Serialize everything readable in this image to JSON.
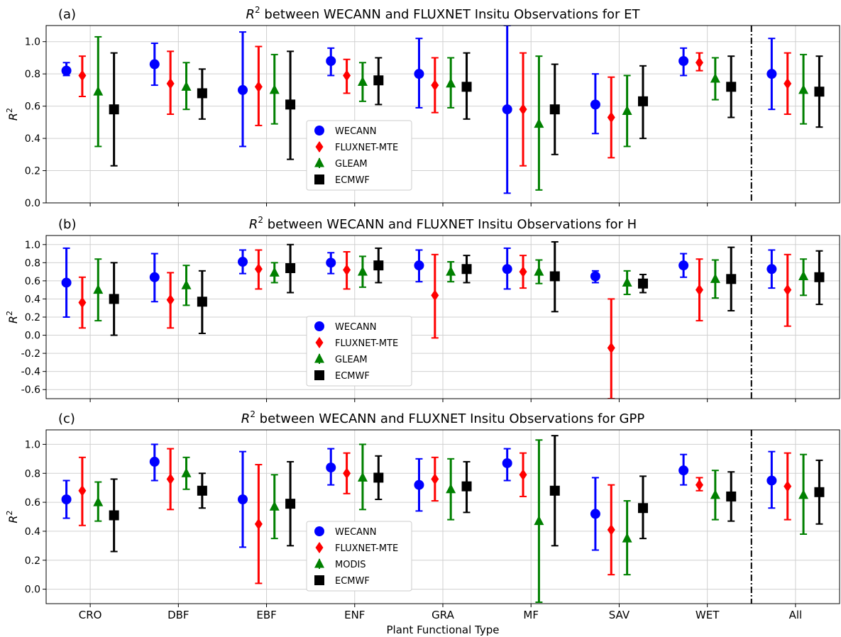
{
  "xlabel": "Plant Functional Type",
  "categories": [
    "CRO",
    "DBF",
    "EBF",
    "ENF",
    "GRA",
    "MF",
    "SAV",
    "WET",
    "All"
  ],
  "chart_data": [
    {
      "type": "errorbar",
      "panel_label": "(a)",
      "title_pre": "R",
      "title_sup": "2",
      "title_post": " between WECANN and FLUXNET Insitu Observations for ET",
      "ylabel": "R",
      "ylabel_sup": "2",
      "ylim": [
        0.0,
        1.1
      ],
      "yticks": [
        0.0,
        0.2,
        0.4,
        0.6,
        0.8,
        1.0
      ],
      "ytick_labels": [
        "0.0",
        "0.2",
        "0.4",
        "0.6",
        "0.8",
        "1.0"
      ],
      "grid": true,
      "legend_position": "lower-center",
      "separator_after_category": "WET",
      "series": [
        {
          "name": "WECANN",
          "color": "#0000ff",
          "marker": "circle",
          "mean": [
            0.82,
            0.86,
            0.7,
            0.88,
            0.8,
            0.58,
            0.61,
            0.88,
            0.8
          ],
          "lower": [
            0.79,
            0.73,
            0.35,
            0.79,
            0.59,
            0.06,
            0.43,
            0.79,
            0.58
          ],
          "upper": [
            0.87,
            0.99,
            1.06,
            0.96,
            1.02,
            1.1,
            0.8,
            0.96,
            1.02
          ]
        },
        {
          "name": "FLUXNET-MTE",
          "color": "#ff0000",
          "marker": "diamond",
          "mean": [
            0.79,
            0.74,
            0.72,
            0.79,
            0.73,
            0.58,
            0.53,
            0.87,
            0.74
          ],
          "lower": [
            0.66,
            0.55,
            0.48,
            0.68,
            0.56,
            0.23,
            0.28,
            0.82,
            0.55
          ],
          "upper": [
            0.91,
            0.94,
            0.97,
            0.89,
            0.9,
            0.93,
            0.78,
            0.93,
            0.93
          ]
        },
        {
          "name": "GLEAM",
          "color": "#008000",
          "marker": "triangle",
          "mean": [
            0.69,
            0.72,
            0.7,
            0.75,
            0.74,
            0.49,
            0.57,
            0.77,
            0.7
          ],
          "lower": [
            0.35,
            0.58,
            0.49,
            0.63,
            0.59,
            0.08,
            0.35,
            0.64,
            0.49
          ],
          "upper": [
            1.03,
            0.87,
            0.92,
            0.87,
            0.9,
            0.91,
            0.79,
            0.9,
            0.92
          ]
        },
        {
          "name": "ECMWF",
          "color": "#000000",
          "marker": "square",
          "mean": [
            0.58,
            0.68,
            0.61,
            0.76,
            0.72,
            0.58,
            0.63,
            0.72,
            0.69
          ],
          "lower": [
            0.23,
            0.52,
            0.27,
            0.61,
            0.52,
            0.3,
            0.4,
            0.53,
            0.47
          ],
          "upper": [
            0.93,
            0.83,
            0.94,
            0.9,
            0.93,
            0.86,
            0.85,
            0.91,
            0.91
          ]
        }
      ]
    },
    {
      "type": "errorbar",
      "panel_label": "(b)",
      "title_pre": "R",
      "title_sup": "2",
      "title_post": " between WECANN and FLUXNET Insitu Observations for H",
      "ylabel": "R",
      "ylabel_sup": "2",
      "ylim": [
        -0.7,
        1.1
      ],
      "yticks": [
        -0.6,
        -0.4,
        -0.2,
        0.0,
        0.2,
        0.4,
        0.6,
        0.8,
        1.0
      ],
      "ytick_labels": [
        "-0.6",
        "-0.4",
        "-0.2",
        "0.0",
        "0.2",
        "0.4",
        "0.6",
        "0.8",
        "1.0"
      ],
      "grid": true,
      "legend_position": "lower-center",
      "separator_after_category": "WET",
      "series": [
        {
          "name": "WECANN",
          "color": "#0000ff",
          "marker": "circle",
          "mean": [
            0.58,
            0.64,
            0.81,
            0.8,
            0.77,
            0.73,
            0.65,
            0.77,
            0.73
          ],
          "lower": [
            0.2,
            0.37,
            0.68,
            0.68,
            0.59,
            0.51,
            0.58,
            0.64,
            0.52
          ],
          "upper": [
            0.96,
            0.9,
            0.94,
            0.91,
            0.94,
            0.96,
            0.71,
            0.9,
            0.94
          ]
        },
        {
          "name": "FLUXNET-MTE",
          "color": "#ff0000",
          "marker": "diamond",
          "mean": [
            0.36,
            0.39,
            0.73,
            0.72,
            0.44,
            0.7,
            -0.14,
            0.5,
            0.5
          ],
          "lower": [
            0.08,
            0.08,
            0.51,
            0.51,
            -0.03,
            0.52,
            -0.7,
            0.16,
            0.1
          ],
          "upper": [
            0.64,
            0.69,
            0.94,
            0.92,
            0.89,
            0.88,
            0.4,
            0.84,
            0.89
          ]
        },
        {
          "name": "GLEAM",
          "color": "#008000",
          "marker": "triangle",
          "mean": [
            0.5,
            0.55,
            0.69,
            0.7,
            0.7,
            0.7,
            0.58,
            0.62,
            0.65
          ],
          "lower": [
            0.16,
            0.33,
            0.58,
            0.53,
            0.59,
            0.57,
            0.45,
            0.41,
            0.44
          ],
          "upper": [
            0.84,
            0.77,
            0.8,
            0.87,
            0.81,
            0.83,
            0.71,
            0.83,
            0.84
          ]
        },
        {
          "name": "ECMWF",
          "color": "#000000",
          "marker": "square",
          "mean": [
            0.4,
            0.37,
            0.74,
            0.77,
            0.73,
            0.65,
            0.57,
            0.62,
            0.64
          ],
          "lower": [
            0.0,
            0.02,
            0.47,
            0.58,
            0.58,
            0.26,
            0.47,
            0.27,
            0.34
          ],
          "upper": [
            0.8,
            0.71,
            1.0,
            0.96,
            0.88,
            1.03,
            0.67,
            0.97,
            0.93
          ]
        }
      ]
    },
    {
      "type": "errorbar",
      "panel_label": "(c)",
      "title_pre": "R",
      "title_sup": "2",
      "title_post": " between WECANN and FLUXNET Insitu Observations for GPP",
      "ylabel": "R",
      "ylabel_sup": "2",
      "ylim": [
        -0.1,
        1.1
      ],
      "yticks": [
        0.0,
        0.2,
        0.4,
        0.6,
        0.8,
        1.0
      ],
      "ytick_labels": [
        "0.0",
        "0.2",
        "0.4",
        "0.6",
        "0.8",
        "1.0"
      ],
      "grid": true,
      "legend_position": "lower-center",
      "separator_after_category": "WET",
      "series": [
        {
          "name": "WECANN",
          "color": "#0000ff",
          "marker": "circle",
          "mean": [
            0.62,
            0.88,
            0.62,
            0.84,
            0.72,
            0.87,
            0.52,
            0.82,
            0.75
          ],
          "lower": [
            0.49,
            0.75,
            0.29,
            0.72,
            0.54,
            0.75,
            0.27,
            0.72,
            0.56
          ],
          "upper": [
            0.75,
            1.0,
            0.95,
            0.97,
            0.9,
            0.97,
            0.77,
            0.93,
            0.95
          ]
        },
        {
          "name": "FLUXNET-MTE",
          "color": "#ff0000",
          "marker": "diamond",
          "mean": [
            0.68,
            0.76,
            0.45,
            0.8,
            0.76,
            0.79,
            0.41,
            0.72,
            0.71
          ],
          "lower": [
            0.44,
            0.55,
            0.04,
            0.66,
            0.61,
            0.64,
            0.1,
            0.68,
            0.48
          ],
          "upper": [
            0.91,
            0.97,
            0.86,
            0.94,
            0.91,
            0.94,
            0.72,
            0.77,
            0.94
          ]
        },
        {
          "name": "MODIS",
          "color": "#008000",
          "marker": "triangle",
          "mean": [
            0.6,
            0.8,
            0.57,
            0.77,
            0.69,
            0.47,
            0.35,
            0.65,
            0.65
          ],
          "lower": [
            0.47,
            0.69,
            0.35,
            0.55,
            0.48,
            -0.09,
            0.1,
            0.48,
            0.38
          ],
          "upper": [
            0.74,
            0.91,
            0.79,
            1.0,
            0.9,
            1.03,
            0.61,
            0.82,
            0.93
          ]
        },
        {
          "name": "ECMWF",
          "color": "#000000",
          "marker": "square",
          "mean": [
            0.51,
            0.68,
            0.59,
            0.77,
            0.71,
            0.68,
            0.56,
            0.64,
            0.67
          ],
          "lower": [
            0.26,
            0.56,
            0.3,
            0.62,
            0.53,
            0.3,
            0.35,
            0.47,
            0.45
          ],
          "upper": [
            0.76,
            0.8,
            0.88,
            0.92,
            0.88,
            1.06,
            0.78,
            0.81,
            0.89
          ]
        }
      ]
    }
  ]
}
